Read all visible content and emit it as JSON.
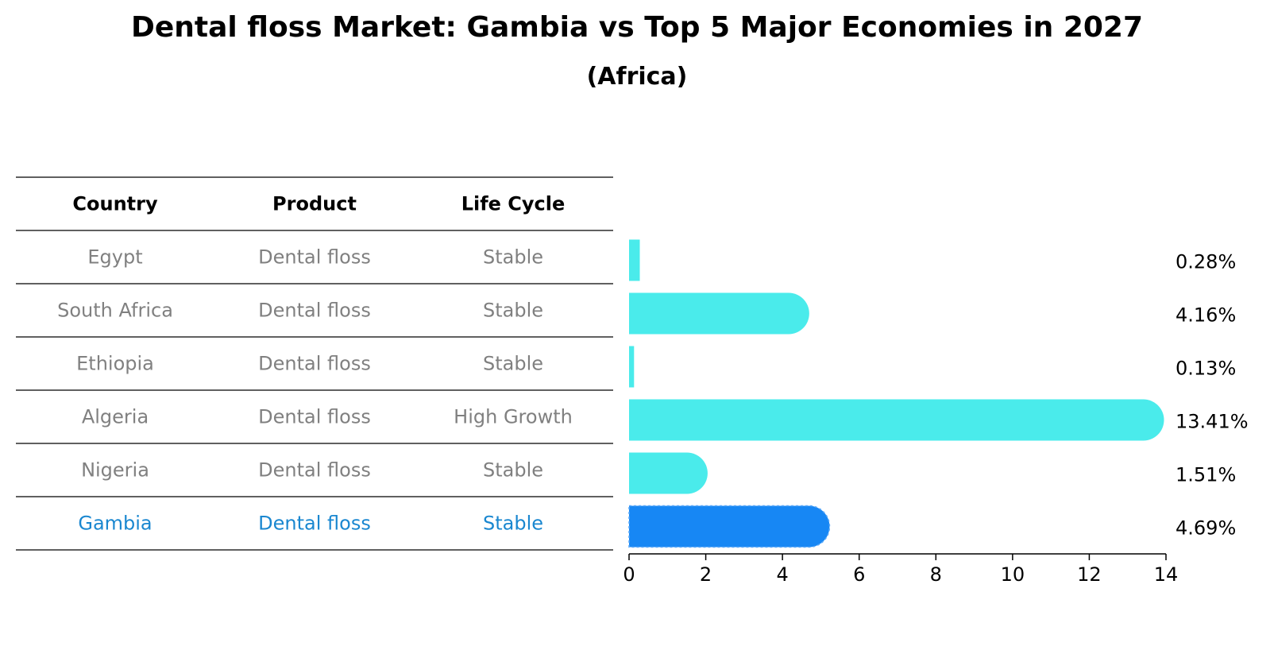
{
  "header": {
    "title": "Dental floss Market: Gambia vs Top 5 Major Economies in 2027",
    "subtitle": "(Africa)"
  },
  "table": {
    "columns": [
      "Country",
      "Product",
      "Life Cycle"
    ],
    "rows": [
      [
        "Egypt",
        "Dental floss",
        "Stable"
      ],
      [
        "South Africa",
        "Dental floss",
        "Stable"
      ],
      [
        "Ethiopia",
        "Dental floss",
        "Stable"
      ],
      [
        "Algeria",
        "Dental floss",
        "High Growth"
      ],
      [
        "Nigeria",
        "Dental floss",
        "Stable"
      ],
      [
        "Gambia",
        "Dental floss",
        "Stable"
      ]
    ],
    "highlight_row": 5
  },
  "colors": {
    "bar": "#4aebeb",
    "highlight_bar": "#1787f4",
    "row_text": "#808080",
    "highlight_text": "#1a87d0",
    "rule": "#000000"
  },
  "chart_data": {
    "type": "bar",
    "orientation": "horizontal",
    "title": "Dental floss Market: Gambia vs Top 5 Major Economies in 2027",
    "subtitle": "(Africa)",
    "categories": [
      "Egypt",
      "South Africa",
      "Ethiopia",
      "Algeria",
      "Nigeria",
      "Gambia"
    ],
    "values": [
      0.28,
      4.16,
      0.13,
      13.41,
      1.51,
      4.69
    ],
    "value_labels": [
      "0.28%",
      "4.16%",
      "0.13%",
      "13.41%",
      "1.51%",
      "4.69%"
    ],
    "xlim": [
      0,
      14
    ],
    "xticks": [
      0,
      2,
      4,
      6,
      8,
      10,
      12,
      14
    ],
    "xlabel": "",
    "ylabel": "",
    "grid": false,
    "highlight_category": "Gambia"
  }
}
